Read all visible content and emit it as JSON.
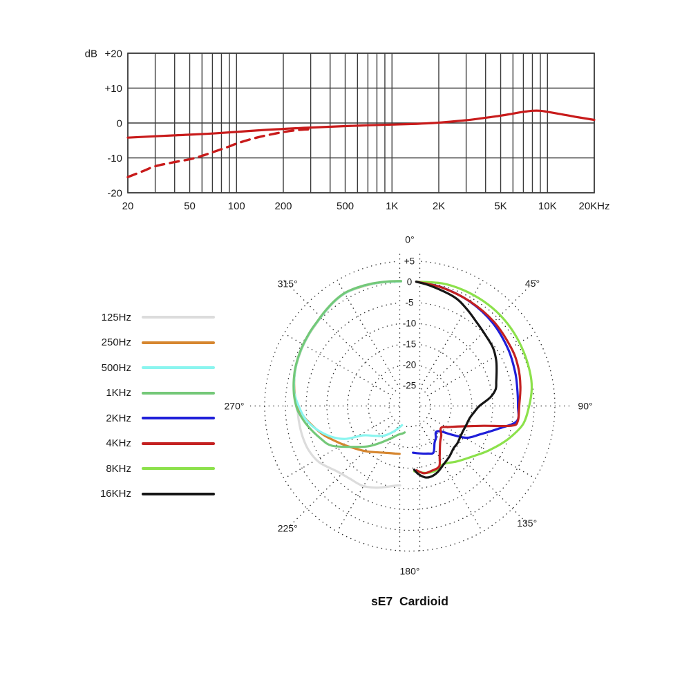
{
  "page": {
    "background": "#ffffff"
  },
  "polar": {
    "title": "sE7  Cardioid"
  },
  "legend": {
    "items": [
      {
        "label": "125Hz",
        "color": "#dcdcdc"
      },
      {
        "label": "250Hz",
        "color": "#d6862f"
      },
      {
        "label": "500Hz",
        "color": "#8af5ef"
      },
      {
        "label": "1KHz",
        "color": "#74c878"
      },
      {
        "label": "2KHz",
        "color": "#1f1fd9"
      },
      {
        "label": "4KHz",
        "color": "#c42121"
      },
      {
        "label": "8KHz",
        "color": "#8ce14b"
      },
      {
        "label": "16KHz",
        "color": "#161616"
      }
    ]
  },
  "chart_data": [
    {
      "id": "frequency-response",
      "type": "line",
      "x_axis": {
        "scale": "log",
        "unit": "Hz",
        "min": 20,
        "max": 20000,
        "tick_values": [
          20,
          50,
          100,
          200,
          500,
          1000,
          2000,
          5000,
          10000,
          20000
        ],
        "tick_labels": [
          "20",
          "50",
          "100",
          "200",
          "500",
          "1K",
          "2K",
          "5K",
          "10K",
          "20KHz"
        ],
        "gridline_values": [
          20,
          30,
          40,
          50,
          60,
          70,
          80,
          90,
          100,
          200,
          300,
          400,
          500,
          600,
          700,
          800,
          900,
          1000,
          2000,
          3000,
          4000,
          5000,
          6000,
          7000,
          8000,
          9000,
          10000,
          20000
        ]
      },
      "y_axis": {
        "label": "dB",
        "min": -20,
        "max": 20,
        "tick_values": [
          20,
          10,
          0,
          -10,
          -20
        ],
        "tick_labels": [
          "+20",
          "+10",
          "0",
          "-10",
          "-20"
        ]
      },
      "grid_color": "#3a3a3a",
      "series": [
        {
          "name": "on-axis-response",
          "style": "solid",
          "color": "#c81b1b",
          "points": [
            [
              20,
              -4.2
            ],
            [
              30,
              -3.8
            ],
            [
              40,
              -3.55
            ],
            [
              50,
              -3.35
            ],
            [
              70,
              -3.0
            ],
            [
              100,
              -2.55
            ],
            [
              150,
              -2.0
            ],
            [
              200,
              -1.7
            ],
            [
              300,
              -1.3
            ],
            [
              500,
              -0.9
            ],
            [
              700,
              -0.65
            ],
            [
              1000,
              -0.45
            ],
            [
              1500,
              -0.2
            ],
            [
              2000,
              0.1
            ],
            [
              3000,
              0.8
            ],
            [
              4000,
              1.5
            ],
            [
              5000,
              2.1
            ],
            [
              6000,
              2.7
            ],
            [
              7000,
              3.2
            ],
            [
              8000,
              3.5
            ],
            [
              9000,
              3.5
            ],
            [
              10000,
              3.2
            ],
            [
              12000,
              2.6
            ],
            [
              15000,
              1.8
            ],
            [
              20000,
              0.9
            ]
          ]
        },
        {
          "name": "low-frequency-rolloff",
          "style": "dashed",
          "color": "#c81b1b",
          "points": [
            [
              20,
              -15.5
            ],
            [
              25,
              -13.8
            ],
            [
              30,
              -12.4
            ],
            [
              40,
              -11.2
            ],
            [
              50,
              -10.4
            ],
            [
              60,
              -9.4
            ],
            [
              70,
              -8.4
            ],
            [
              80,
              -7.5
            ],
            [
              90,
              -6.7
            ],
            [
              100,
              -5.9
            ],
            [
              120,
              -4.8
            ],
            [
              150,
              -3.7
            ],
            [
              200,
              -2.6
            ],
            [
              250,
              -2.0
            ],
            [
              290,
              -1.8
            ]
          ]
        }
      ]
    },
    {
      "id": "polar-pattern",
      "type": "polar",
      "angle_unit": "deg",
      "angle_tick_values": [
        0,
        45,
        90,
        135,
        180,
        225,
        270,
        315
      ],
      "angle_tick_labels": [
        "0°",
        "45°",
        "90°",
        "135°",
        "180°",
        "225°",
        "270°",
        "315°"
      ],
      "radial_axis": {
        "unit": "dB",
        "center_value": -30,
        "ring_step": 5,
        "tick_values": [
          5,
          0,
          -5,
          -10,
          -15,
          -20,
          -25
        ],
        "tick_labels": [
          "+5",
          "0",
          "-5",
          "-10",
          "-15",
          "-20",
          "-25"
        ]
      },
      "series": [
        {
          "name": "125Hz",
          "color": "#dcdcdc",
          "points": [
            [
              356,
              0.15
            ],
            [
              350,
              0.45
            ],
            [
              343,
              0.85
            ],
            [
              336,
              1.2
            ],
            [
              330,
              1.4
            ],
            [
              324,
              1.1
            ],
            [
              318,
              0.6
            ],
            [
              312,
              0.15
            ],
            [
              306,
              -0.1
            ],
            [
              298,
              -0.45
            ],
            [
              290,
              -0.85
            ],
            [
              283,
              -1.35
            ],
            [
              276,
              -2.0
            ],
            [
              270,
              -2.8
            ],
            [
              262,
              -3.0
            ],
            [
              254,
              -3.1
            ],
            [
              246,
              -3.4
            ],
            [
              238,
              -4.3
            ],
            [
              228,
              -6.4
            ],
            [
              219,
              -7.3
            ],
            [
              211,
              -7.6
            ],
            [
              203,
              -8.6
            ],
            [
              196,
              -9.7
            ],
            [
              190,
              -10.5
            ],
            [
              187,
              -10.7
            ]
          ]
        },
        {
          "name": "250Hz",
          "color": "#d6862f",
          "points": [
            [
              356,
              0.1
            ],
            [
              350,
              0.4
            ],
            [
              343,
              0.8
            ],
            [
              336,
              1.15
            ],
            [
              330,
              1.35
            ],
            [
              324,
              1.05
            ],
            [
              318,
              0.55
            ],
            [
              312,
              0.1
            ],
            [
              306,
              -0.15
            ],
            [
              298,
              -0.5
            ],
            [
              290,
              -0.9
            ],
            [
              283,
              -1.4
            ],
            [
              276,
              -2.1
            ],
            [
              270,
              -3.0
            ],
            [
              265,
              -4.1
            ],
            [
              261,
              -5.3
            ],
            [
              252,
              -7.9
            ],
            [
              242,
              -10.9
            ],
            [
              234,
              -12.9
            ],
            [
              224,
              -14.8
            ],
            [
              214,
              -16.5
            ],
            [
              205,
              -17.5
            ],
            [
              197,
              -18.0
            ],
            [
              192,
              -18.2
            ]
          ]
        },
        {
          "name": "500Hz",
          "color": "#8af5ef",
          "points": [
            [
              356,
              0.12
            ],
            [
              350,
              0.42
            ],
            [
              343,
              0.82
            ],
            [
              336,
              1.17
            ],
            [
              330,
              1.37
            ],
            [
              324,
              1.07
            ],
            [
              318,
              0.57
            ],
            [
              312,
              0.12
            ],
            [
              306,
              -0.12
            ],
            [
              298,
              -0.48
            ],
            [
              290,
              -0.88
            ],
            [
              283,
              -1.38
            ],
            [
              276,
              -2.05
            ],
            [
              270,
              -3.2
            ],
            [
              263,
              -4.6
            ],
            [
              256,
              -6.8
            ],
            [
              249,
              -9.5
            ],
            [
              243,
              -12.5
            ],
            [
              238,
              -16.6
            ],
            [
              230,
              -18.8
            ],
            [
              221,
              -20.5
            ],
            [
              213,
              -22.5
            ],
            [
              207,
              -24.0
            ],
            [
              202,
              -25.0
            ]
          ]
        },
        {
          "name": "1KHz",
          "color": "#74c878",
          "points": [
            [
              356,
              0.2
            ],
            [
              350,
              0.5
            ],
            [
              343,
              0.9
            ],
            [
              336,
              1.25
            ],
            [
              330,
              1.45
            ],
            [
              324,
              1.15
            ],
            [
              318,
              0.65
            ],
            [
              312,
              0.2
            ],
            [
              306,
              -0.05
            ],
            [
              298,
              -0.4
            ],
            [
              290,
              -0.8
            ],
            [
              283,
              -1.3
            ],
            [
              276,
              -1.9
            ],
            [
              270,
              -2.6
            ],
            [
              266,
              -3.3
            ],
            [
              259,
              -4.9
            ],
            [
              250,
              -7.1
            ],
            [
              243,
              -8.9
            ],
            [
              234,
              -13.2
            ],
            [
              226,
              -16.0
            ],
            [
              219,
              -18.5
            ],
            [
              210,
              -21.0
            ],
            [
              202,
              -22.5
            ],
            [
              194,
              -23.2
            ],
            [
              191,
              -23.5
            ]
          ]
        },
        {
          "name": "2KHz",
          "color": "#1f1fd9",
          "points": [
            [
              3,
              0
            ],
            [
              15,
              -0.35
            ],
            [
              30,
              -0.95
            ],
            [
              45,
              -1.7
            ],
            [
              60,
              -2.6
            ],
            [
              72,
              -3.3
            ],
            [
              80,
              -3.7
            ],
            [
              90,
              -3.9
            ],
            [
              98,
              -3.9
            ],
            [
              104,
              -7.7
            ],
            [
              112,
              -11.7
            ],
            [
              119,
              -14.2
            ],
            [
              124,
              -17.5
            ],
            [
              128,
              -19.8
            ],
            [
              132,
              -20.9
            ],
            [
              136,
              -21.0
            ],
            [
              141,
              -20.0
            ],
            [
              146,
              -19.3
            ],
            [
              153,
              -17.4
            ],
            [
              159,
              -17.7
            ],
            [
              168,
              -18.3
            ],
            [
              176,
              -18.7
            ]
          ]
        },
        {
          "name": "8KHz",
          "color": "#8ce14b",
          "points": [
            [
              3,
              0
            ],
            [
              15,
              0.6
            ],
            [
              25,
              0.8
            ],
            [
              35,
              0.9
            ],
            [
              45,
              0.9
            ],
            [
              55,
              0.7
            ],
            [
              65,
              0.4
            ],
            [
              75,
              0.1
            ],
            [
              82,
              -0.3
            ],
            [
              90,
              -1.2
            ],
            [
              99,
              -2.3
            ],
            [
              107,
              -4.5
            ],
            [
              113,
              -6.3
            ],
            [
              120,
              -8.3
            ],
            [
              124,
              -9.4
            ],
            [
              132,
              -11.2
            ],
            [
              140,
              -12.5
            ],
            [
              150,
              -13.8
            ],
            [
              158,
              -13.2
            ],
            [
              165,
              -13.3
            ],
            [
              170,
              -13.7
            ],
            [
              176,
              -14.2
            ]
          ]
        },
        {
          "name": "4KHz",
          "color": "#c42121",
          "points": [
            [
              3,
              0
            ],
            [
              15,
              -0.4
            ],
            [
              30,
              -0.9
            ],
            [
              45,
              -1.3
            ],
            [
              60,
              -1.8
            ],
            [
              70,
              -2.2
            ],
            [
              80,
              -2.9
            ],
            [
              90,
              -3.6
            ],
            [
              98,
              -3.7
            ],
            [
              101,
              -5.0
            ],
            [
              105,
              -11.5
            ],
            [
              111,
              -16.3
            ],
            [
              118,
              -19.2
            ],
            [
              125,
              -20.8
            ],
            [
              133,
              -19.6
            ],
            [
              140,
              -18.6
            ],
            [
              149,
              -16.0
            ],
            [
              154,
              -13.8
            ],
            [
              161,
              -13.5
            ],
            [
              168,
              -13.4
            ],
            [
              174,
              -14.4
            ]
          ]
        },
        {
          "name": "16KHz",
          "color": "#161616",
          "points": [
            [
              3,
              0
            ],
            [
              10,
              -0.6
            ],
            [
              22,
              -1.6
            ],
            [
              30,
              -2.8
            ],
            [
              39,
              -4.2
            ],
            [
              47,
              -5.0
            ],
            [
              55,
              -5.5
            ],
            [
              62,
              -6.4
            ],
            [
              68,
              -7.4
            ],
            [
              74,
              -8.3
            ],
            [
              79,
              -8.9
            ],
            [
              84,
              -10.5
            ],
            [
              90,
              -13.2
            ],
            [
              95,
              -14.3
            ],
            [
              101,
              -15.2
            ],
            [
              108,
              -15.6
            ],
            [
              115,
              -15.8
            ],
            [
              122,
              -15.7
            ],
            [
              128,
              -15.4
            ],
            [
              134,
              -15.3
            ],
            [
              142,
              -14.5
            ],
            [
              150,
              -13.7
            ],
            [
              157,
              -12.7
            ],
            [
              163,
              -12.2
            ],
            [
              168,
              -12.4
            ],
            [
              173,
              -13.5
            ],
            [
              176,
              -14.6
            ]
          ]
        }
      ]
    }
  ]
}
